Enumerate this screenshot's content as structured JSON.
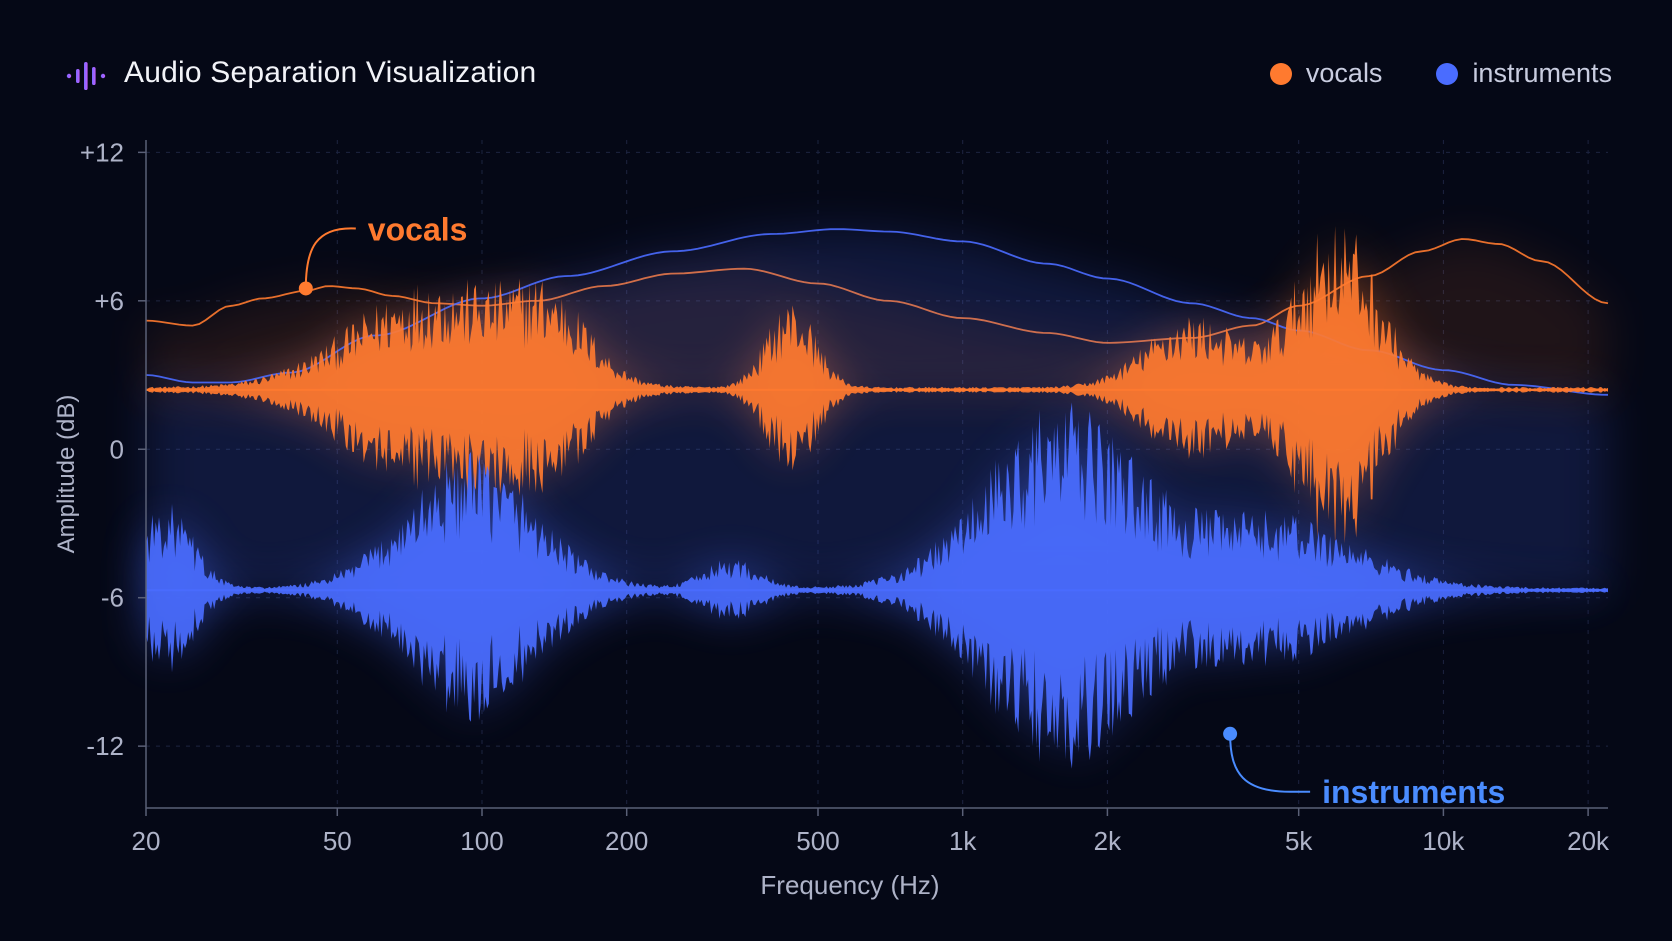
{
  "header": {
    "title": "Audio Separation Visualization",
    "logo_icon": "waveform-icon"
  },
  "legend": [
    {
      "label": "vocals",
      "color": "#ff7a2f"
    },
    {
      "label": "instruments",
      "color": "#4a6cff"
    }
  ],
  "annotations": {
    "vocals": "vocals",
    "instruments": "instruments"
  },
  "chart_data": {
    "type": "area",
    "xlabel": "Frequency (Hz)",
    "ylabel": "Amplitude (dB)",
    "x_scale": "log",
    "xlim": [
      20,
      22000
    ],
    "ylim": [
      -14.5,
      12.5
    ],
    "x_ticks": [
      {
        "value": 20,
        "label": "20"
      },
      {
        "value": 50,
        "label": "50"
      },
      {
        "value": 100,
        "label": "100"
      },
      {
        "value": 200,
        "label": "200"
      },
      {
        "value": 500,
        "label": "500"
      },
      {
        "value": 1000,
        "label": "1k"
      },
      {
        "value": 2000,
        "label": "2k"
      },
      {
        "value": 5000,
        "label": "5k"
      },
      {
        "value": 10000,
        "label": "10k"
      },
      {
        "value": 20000,
        "label": "20k"
      }
    ],
    "y_ticks": [
      {
        "value": 12,
        "label": "+12"
      },
      {
        "value": 6,
        "label": "+6"
      },
      {
        "value": 0,
        "label": "0"
      },
      {
        "value": -6,
        "label": "-6"
      },
      {
        "value": -12,
        "label": "-12"
      }
    ],
    "grid": true,
    "legend_position": "top-right",
    "series": [
      {
        "name": "vocals",
        "color": "#ff7a2f",
        "baseline": 2.4,
        "envelope_x": [
          20,
          25,
          30,
          35,
          43,
          48,
          55,
          65,
          80,
          100,
          130,
          180,
          250,
          350,
          500,
          700,
          1000,
          1500,
          2000,
          3000,
          4000,
          5000,
          7000,
          9000,
          11000,
          13000,
          16000,
          22000
        ],
        "envelope_y": [
          5.2,
          5.0,
          5.8,
          6.1,
          6.4,
          6.6,
          6.5,
          6.2,
          5.9,
          5.8,
          6.0,
          6.6,
          7.1,
          7.3,
          6.7,
          6.0,
          5.3,
          4.7,
          4.3,
          4.5,
          5.0,
          5.8,
          7.0,
          8.0,
          8.5,
          8.3,
          7.6,
          5.9
        ],
        "bursts": [
          {
            "center": 80,
            "width": 0.3,
            "amp": 4.5
          },
          {
            "center": 140,
            "width": 0.14,
            "amp": 2.8
          },
          {
            "center": 440,
            "width": 0.09,
            "amp": 3.6
          },
          {
            "center": 3000,
            "width": 0.17,
            "amp": 3.0
          },
          {
            "center": 6000,
            "width": 0.15,
            "amp": 7.0
          }
        ]
      },
      {
        "name": "instruments",
        "color": "#4a6cff",
        "baseline": -5.7,
        "envelope_x": [
          20,
          25,
          30,
          40,
          60,
          100,
          150,
          250,
          400,
          550,
          700,
          1000,
          1500,
          2000,
          3000,
          4000,
          5000,
          7000,
          10000,
          14000,
          22000
        ],
        "envelope_y": [
          3.0,
          2.7,
          2.7,
          3.1,
          4.6,
          6.1,
          7.0,
          8.0,
          8.7,
          8.9,
          8.8,
          8.4,
          7.5,
          6.9,
          5.9,
          5.3,
          4.8,
          4.0,
          3.2,
          2.6,
          2.2
        ],
        "bursts": [
          {
            "center": 22,
            "width": 0.1,
            "amp": 3.5
          },
          {
            "center": 95,
            "width": 0.24,
            "amp": 5.5
          },
          {
            "center": 330,
            "width": 0.1,
            "amp": 1.2
          },
          {
            "center": 1600,
            "width": 0.28,
            "amp": 7.5
          },
          {
            "center": 4500,
            "width": 0.3,
            "amp": 3.0
          }
        ]
      }
    ],
    "markers": [
      {
        "series": "vocals",
        "x": 43,
        "y": 6.5
      },
      {
        "series": "instruments",
        "x": 3600,
        "y": -11.5
      }
    ]
  }
}
